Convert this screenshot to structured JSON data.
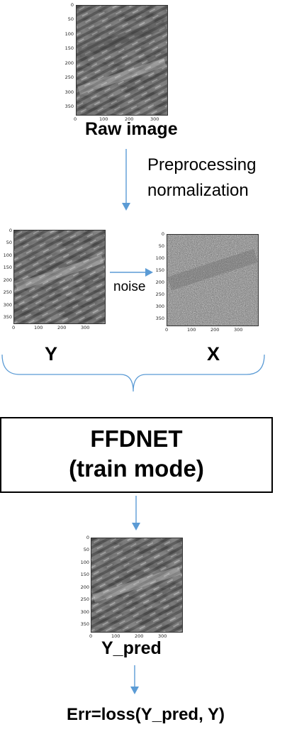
{
  "raw": {
    "label": "Raw image",
    "ticks_y": [
      "0",
      "50",
      "100",
      "150",
      "200",
      "250",
      "300",
      "350"
    ],
    "ticks_x": [
      "0",
      "100",
      "200",
      "300"
    ]
  },
  "step1": {
    "line1": "Preprocessing",
    "line2": "normalization"
  },
  "y_panel": {
    "label": "Y",
    "ticks_y": [
      "0",
      "50",
      "100",
      "150",
      "200",
      "250",
      "300",
      "350"
    ],
    "ticks_x": [
      "0",
      "100",
      "200",
      "300"
    ]
  },
  "noise_label": "noise",
  "x_panel": {
    "label": "X",
    "ticks_y": [
      "0",
      "50",
      "100",
      "150",
      "200",
      "250",
      "300",
      "350"
    ],
    "ticks_x": [
      "0",
      "100",
      "200",
      "300"
    ]
  },
  "model": {
    "line1": "FFDNET",
    "line2": "(train mode)"
  },
  "pred_panel": {
    "label": "Y_pred",
    "ticks_y": [
      "0",
      "50",
      "100",
      "150",
      "200",
      "250",
      "300",
      "350"
    ],
    "ticks_x": [
      "0",
      "100",
      "200",
      "300"
    ]
  },
  "loss": "Err=loss(Y_pred, Y)",
  "colors": {
    "arrow": "#5b9bd5",
    "text": "#000000",
    "box_border": "#000000"
  }
}
